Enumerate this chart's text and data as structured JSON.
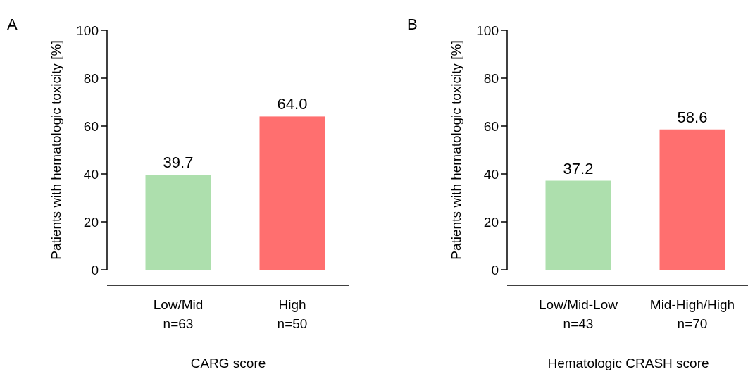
{
  "chart_data": [
    {
      "type": "bar",
      "title": "A",
      "categories": [
        "Low/Mid\nn=63",
        "High\nn=50"
      ],
      "values": [
        39.7,
        64.0
      ],
      "colors": [
        "#addfad",
        "#ff6f6f"
      ],
      "value_labels": [
        "39.7",
        "64.0"
      ],
      "xlabel": "CARG score",
      "ylabel": "Patients with hematologic toxicity [%]",
      "ylim": [
        0,
        100
      ],
      "yticks": [
        0,
        20,
        40,
        60,
        80,
        100
      ],
      "grid": false
    },
    {
      "type": "bar",
      "title": "B",
      "categories": [
        "Low/Mid-Low\nn=43",
        "Mid-High/High\nn=70"
      ],
      "values": [
        37.2,
        58.6
      ],
      "colors": [
        "#addfad",
        "#ff6f6f"
      ],
      "value_labels": [
        "37.2",
        "58.6"
      ],
      "xlabel": "Hematologic CRASH score",
      "ylabel": "Patients with hematologic toxicity [%]",
      "ylim": [
        0,
        100
      ],
      "yticks": [
        0,
        20,
        40,
        60,
        80,
        100
      ],
      "grid": false
    }
  ]
}
